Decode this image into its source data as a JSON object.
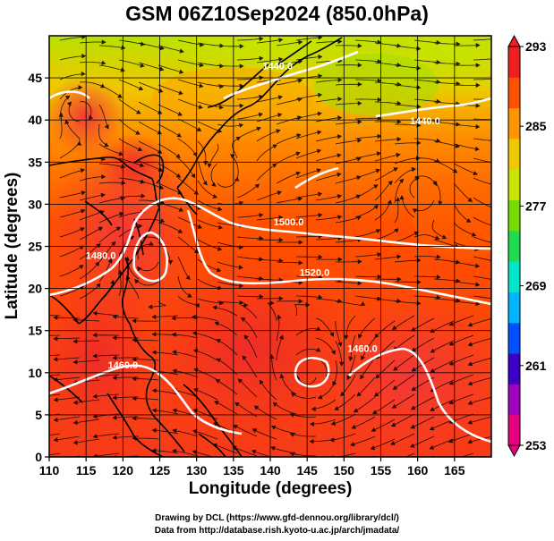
{
  "title": "GSM 06Z10Sep2024 (850.0hPa)",
  "xlabel": "Longitude (degrees)",
  "ylabel": "Latitude (degrees)",
  "credits": [
    "Drawing by DCL (https://www.gfd-dennou.org/library/dcl/)",
    "Data from http://database.rish.kyoto-u.ac.jp/arch/jmadata/"
  ],
  "map_extent": {
    "lon": [
      110,
      170
    ],
    "lat": [
      0,
      50
    ]
  },
  "x_ticks": [
    "110",
    "115",
    "120",
    "125",
    "130",
    "135",
    "140",
    "145",
    "150",
    "155",
    "160",
    "165"
  ],
  "y_ticks": [
    "0",
    "5",
    "10",
    "15",
    "20",
    "25",
    "30",
    "35",
    "40",
    "45"
  ],
  "colorbar": {
    "min": 253,
    "max": 293,
    "labels": [
      "293",
      "285",
      "277",
      "269",
      "261",
      "253"
    ],
    "colors": [
      "#e8007f",
      "#a000c0",
      "#3c00c8",
      "#0050ff",
      "#00b4ff",
      "#00e6c8",
      "#1edc50",
      "#78dc00",
      "#c8e600",
      "#f0c800",
      "#ff9600",
      "#ff5000",
      "#f01e1e"
    ]
  },
  "contour_labels": [
    {
      "text": "1500.0",
      "lon": 142.5,
      "lat": 27.5
    },
    {
      "text": "1520.0",
      "lon": 146,
      "lat": 21.5
    },
    {
      "text": "1480.0",
      "lon": 117,
      "lat": 23.5
    },
    {
      "text": "1460.0",
      "lon": 120,
      "lat": 10.5
    },
    {
      "text": "1460.0",
      "lon": 152.5,
      "lat": 12.5
    },
    {
      "text": "1440.0",
      "lon": 141,
      "lat": 46
    },
    {
      "text": "1440.0",
      "lon": 161,
      "lat": 39.5
    }
  ]
}
